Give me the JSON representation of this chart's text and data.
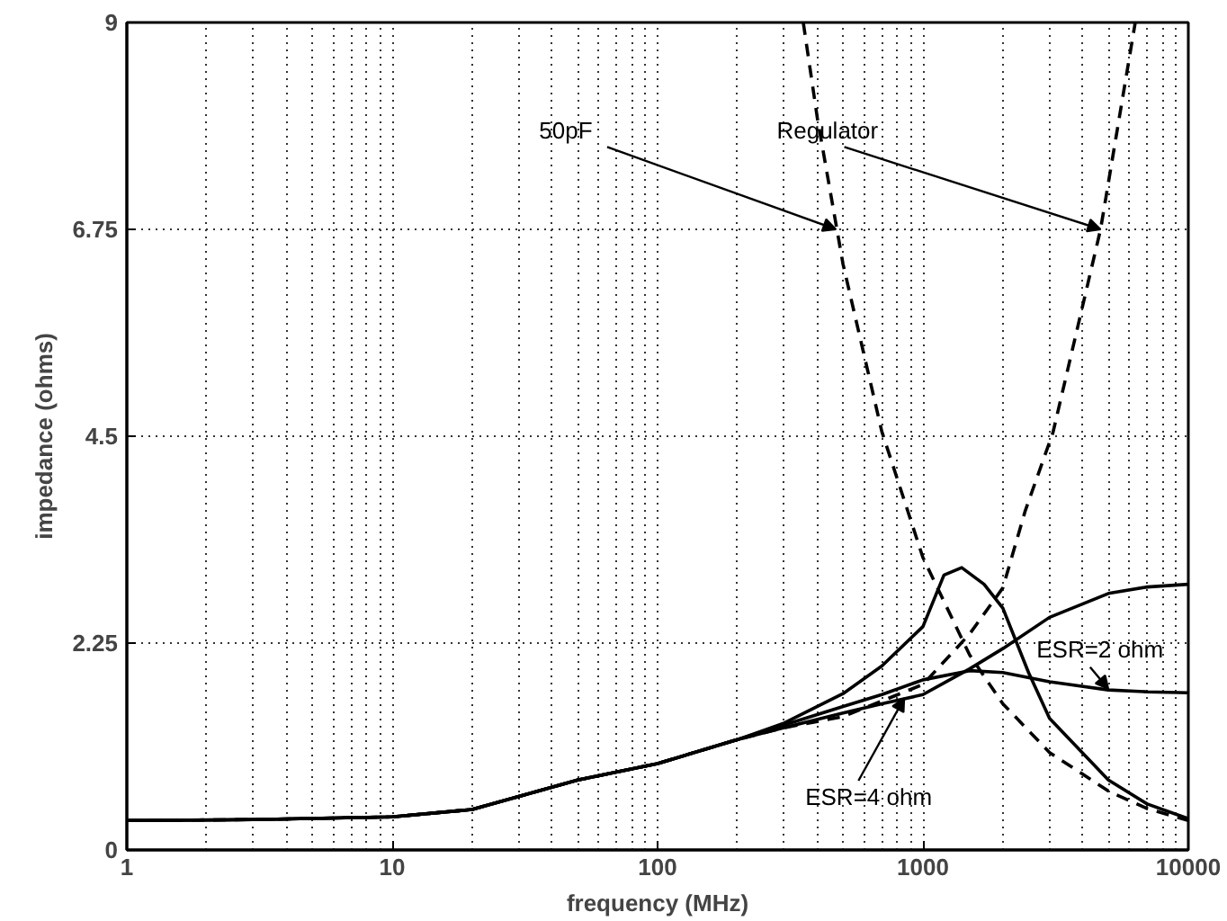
{
  "chart_data": {
    "type": "line",
    "xlabel": "frequency (MHz)",
    "ylabel": "impedance (ohms)",
    "log": "x",
    "grid": true,
    "xlim": [
      1,
      10000
    ],
    "ylim": [
      0,
      9
    ],
    "xticks": [
      1,
      10,
      100,
      1000,
      10000
    ],
    "yticks": [
      0,
      2.25,
      4.5,
      6.75,
      9
    ],
    "series": [
      {
        "color": "#000000",
        "line_style": "dashed",
        "x": [
          354,
          400,
          500,
          700,
          1000,
          1500,
          2000,
          3000,
          5000,
          7000,
          10000
        ],
        "values": [
          9,
          7.96,
          6.37,
          4.55,
          3.18,
          2.12,
          1.59,
          1.06,
          0.64,
          0.45,
          0.32
        ]
      },
      {
        "color": "#000000",
        "line_style": "dashed",
        "x": [
          1,
          3,
          10,
          20,
          50,
          100,
          200,
          300,
          500,
          1000,
          1500,
          2000,
          2430,
          3090,
          4670,
          6310
        ],
        "values": [
          0.32,
          0.33,
          0.36,
          0.44,
          0.76,
          0.94,
          1.2,
          1.33,
          1.45,
          1.8,
          2.35,
          2.85,
          3.69,
          4.54,
          6.75,
          9
        ]
      },
      {
        "color": "#000000",
        "line_style": "solid",
        "x": [
          1,
          3,
          10,
          20,
          50,
          100,
          200,
          300,
          500,
          700,
          1000,
          1200,
          1400,
          1700,
          2000,
          2500,
          3000,
          5000,
          7000,
          10000
        ],
        "values": [
          0.32,
          0.33,
          0.36,
          0.44,
          0.76,
          0.94,
          1.2,
          1.38,
          1.7,
          2.0,
          2.43,
          2.99,
          3.07,
          2.89,
          2.63,
          1.93,
          1.43,
          0.76,
          0.5,
          0.34
        ]
      },
      {
        "color": "#000000",
        "line_style": "solid",
        "x": [
          1,
          3,
          10,
          20,
          50,
          100,
          200,
          300,
          500,
          700,
          1000,
          1500,
          2000,
          3000,
          5000,
          7000,
          10000
        ],
        "values": [
          0.32,
          0.33,
          0.36,
          0.44,
          0.76,
          0.94,
          1.2,
          1.33,
          1.49,
          1.59,
          1.69,
          1.97,
          2.19,
          2.53,
          2.79,
          2.86,
          2.89
        ]
      },
      {
        "color": "#000000",
        "line_style": "solid",
        "x": [
          1,
          3,
          10,
          20,
          50,
          100,
          200,
          300,
          500,
          700,
          1000,
          1500,
          2000,
          3000,
          5000,
          7000,
          10000
        ],
        "values": [
          0.32,
          0.33,
          0.36,
          0.44,
          0.76,
          0.94,
          1.2,
          1.36,
          1.56,
          1.69,
          1.85,
          1.95,
          1.93,
          1.83,
          1.74,
          1.72,
          1.71
        ]
      }
    ],
    "annotations": [
      {
        "text": "50pF",
        "x": 470,
        "y": 6.75
      },
      {
        "text": "Regulator",
        "x": 4670,
        "y": 6.75
      },
      {
        "text": "ESR=2 ohm",
        "x": 5000,
        "y": 1.75
      },
      {
        "text": "ESR=4 ohm",
        "x": 850,
        "y": 1.65
      }
    ]
  }
}
